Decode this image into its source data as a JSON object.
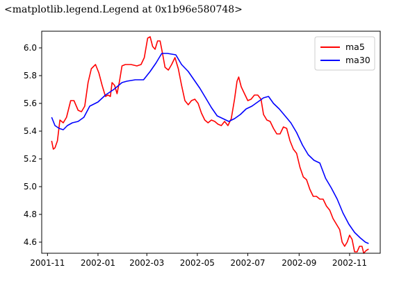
{
  "output_repr": "<matplotlib.legend.Legend at 0x1b96e580748>",
  "chart_data": {
    "type": "line",
    "xlim": [
      "2001-10-25",
      "2002-12-08"
    ],
    "ylim": [
      4.52,
      6.12
    ],
    "x_ticks": [
      "2001-11",
      "2002-01",
      "2002-03",
      "2002-05",
      "2002-07",
      "2002-09",
      "2002-11"
    ],
    "x_tick_dates": [
      "2001-11-01",
      "2002-01-01",
      "2002-03-01",
      "2002-05-01",
      "2002-07-01",
      "2002-09-01",
      "2002-11-01"
    ],
    "y_ticks": [
      "4.6",
      "4.8",
      "5.0",
      "5.2",
      "5.4",
      "5.6",
      "5.8",
      "6.0"
    ],
    "y_tick_values": [
      4.6,
      4.8,
      5.0,
      5.2,
      5.4,
      5.6,
      5.8,
      6.0
    ],
    "legend_position": "top-right",
    "series": [
      {
        "name": "ma5",
        "color": "#ff0000",
        "points": [
          [
            "2001-11-06",
            5.33
          ],
          [
            "2001-11-08",
            5.27
          ],
          [
            "2001-11-10",
            5.28
          ],
          [
            "2001-11-13",
            5.33
          ],
          [
            "2001-11-16",
            5.48
          ],
          [
            "2001-11-20",
            5.46
          ],
          [
            "2001-11-24",
            5.5
          ],
          [
            "2001-11-29",
            5.62
          ],
          [
            "2001-12-03",
            5.62
          ],
          [
            "2001-12-08",
            5.55
          ],
          [
            "2001-12-12",
            5.54
          ],
          [
            "2001-12-16",
            5.58
          ],
          [
            "2001-12-20",
            5.75
          ],
          [
            "2001-12-24",
            5.85
          ],
          [
            "2001-12-29",
            5.88
          ],
          [
            "2002-01-02",
            5.82
          ],
          [
            "2002-01-06",
            5.73
          ],
          [
            "2002-01-10",
            5.65
          ],
          [
            "2002-01-13",
            5.66
          ],
          [
            "2002-01-16",
            5.65
          ],
          [
            "2002-01-18",
            5.75
          ],
          [
            "2002-01-21",
            5.73
          ],
          [
            "2002-01-24",
            5.67
          ],
          [
            "2002-01-27",
            5.76
          ],
          [
            "2002-01-30",
            5.87
          ],
          [
            "2002-02-03",
            5.88
          ],
          [
            "2002-02-10",
            5.88
          ],
          [
            "2002-02-17",
            5.87
          ],
          [
            "2002-02-22",
            5.88
          ],
          [
            "2002-02-26",
            5.93
          ],
          [
            "2002-03-02",
            6.07
          ],
          [
            "2002-03-05",
            6.08
          ],
          [
            "2002-03-08",
            6.01
          ],
          [
            "2002-03-11",
            5.99
          ],
          [
            "2002-03-14",
            6.05
          ],
          [
            "2002-03-17",
            6.05
          ],
          [
            "2002-03-20",
            5.96
          ],
          [
            "2002-03-23",
            5.86
          ],
          [
            "2002-03-27",
            5.84
          ],
          [
            "2002-03-31",
            5.88
          ],
          [
            "2002-04-04",
            5.93
          ],
          [
            "2002-04-08",
            5.85
          ],
          [
            "2002-04-12",
            5.73
          ],
          [
            "2002-04-16",
            5.62
          ],
          [
            "2002-04-20",
            5.59
          ],
          [
            "2002-04-24",
            5.62
          ],
          [
            "2002-04-28",
            5.63
          ],
          [
            "2002-05-02",
            5.6
          ],
          [
            "2002-05-06",
            5.53
          ],
          [
            "2002-05-10",
            5.48
          ],
          [
            "2002-05-14",
            5.46
          ],
          [
            "2002-05-18",
            5.48
          ],
          [
            "2002-05-22",
            5.47
          ],
          [
            "2002-05-26",
            5.45
          ],
          [
            "2002-05-30",
            5.44
          ],
          [
            "2002-06-03",
            5.47
          ],
          [
            "2002-06-07",
            5.44
          ],
          [
            "2002-06-11",
            5.49
          ],
          [
            "2002-06-15",
            5.63
          ],
          [
            "2002-06-18",
            5.76
          ],
          [
            "2002-06-20",
            5.79
          ],
          [
            "2002-06-23",
            5.72
          ],
          [
            "2002-06-27",
            5.67
          ],
          [
            "2002-07-01",
            5.62
          ],
          [
            "2002-07-05",
            5.63
          ],
          [
            "2002-07-09",
            5.66
          ],
          [
            "2002-07-13",
            5.66
          ],
          [
            "2002-07-17",
            5.63
          ],
          [
            "2002-07-20",
            5.52
          ],
          [
            "2002-07-24",
            5.48
          ],
          [
            "2002-07-28",
            5.47
          ],
          [
            "2002-08-01",
            5.42
          ],
          [
            "2002-08-05",
            5.38
          ],
          [
            "2002-08-09",
            5.38
          ],
          [
            "2002-08-13",
            5.43
          ],
          [
            "2002-08-17",
            5.42
          ],
          [
            "2002-08-21",
            5.33
          ],
          [
            "2002-08-25",
            5.27
          ],
          [
            "2002-08-29",
            5.24
          ],
          [
            "2002-09-02",
            5.14
          ],
          [
            "2002-09-06",
            5.07
          ],
          [
            "2002-09-10",
            5.05
          ],
          [
            "2002-09-14",
            4.98
          ],
          [
            "2002-09-18",
            4.93
          ],
          [
            "2002-09-22",
            4.93
          ],
          [
            "2002-09-26",
            4.91
          ],
          [
            "2002-09-30",
            4.91
          ],
          [
            "2002-10-04",
            4.86
          ],
          [
            "2002-10-08",
            4.83
          ],
          [
            "2002-10-12",
            4.77
          ],
          [
            "2002-10-16",
            4.73
          ],
          [
            "2002-10-20",
            4.69
          ],
          [
            "2002-10-23",
            4.6
          ],
          [
            "2002-10-26",
            4.57
          ],
          [
            "2002-10-29",
            4.6
          ],
          [
            "2002-11-01",
            4.65
          ],
          [
            "2002-11-04",
            4.62
          ],
          [
            "2002-11-07",
            4.53
          ],
          [
            "2002-11-10",
            4.53
          ],
          [
            "2002-11-13",
            4.57
          ],
          [
            "2002-11-16",
            4.57
          ],
          [
            "2002-11-18",
            4.52
          ],
          [
            "2002-11-21",
            4.54
          ],
          [
            "2002-11-24",
            4.55
          ]
        ]
      },
      {
        "name": "ma30",
        "color": "#0000ff",
        "points": [
          [
            "2001-11-06",
            5.5
          ],
          [
            "2001-11-10",
            5.44
          ],
          [
            "2001-11-15",
            5.42
          ],
          [
            "2001-11-20",
            5.41
          ],
          [
            "2001-11-25",
            5.44
          ],
          [
            "2001-12-01",
            5.46
          ],
          [
            "2001-12-08",
            5.47
          ],
          [
            "2001-12-15",
            5.5
          ],
          [
            "2001-12-22",
            5.58
          ],
          [
            "2002-01-01",
            5.61
          ],
          [
            "2002-01-10",
            5.66
          ],
          [
            "2002-01-20",
            5.7
          ],
          [
            "2002-01-30",
            5.75
          ],
          [
            "2002-02-05",
            5.76
          ],
          [
            "2002-02-15",
            5.77
          ],
          [
            "2002-02-25",
            5.77
          ],
          [
            "2002-03-05",
            5.83
          ],
          [
            "2002-03-12",
            5.89
          ],
          [
            "2002-03-19",
            5.96
          ],
          [
            "2002-03-26",
            5.96
          ],
          [
            "2002-04-05",
            5.95
          ],
          [
            "2002-04-12",
            5.88
          ],
          [
            "2002-04-20",
            5.83
          ],
          [
            "2002-04-27",
            5.77
          ],
          [
            "2002-05-04",
            5.71
          ],
          [
            "2002-05-11",
            5.64
          ],
          [
            "2002-05-18",
            5.57
          ],
          [
            "2002-05-25",
            5.51
          ],
          [
            "2002-06-01",
            5.49
          ],
          [
            "2002-06-08",
            5.47
          ],
          [
            "2002-06-15",
            5.49
          ],
          [
            "2002-06-22",
            5.52
          ],
          [
            "2002-06-29",
            5.56
          ],
          [
            "2002-07-06",
            5.58
          ],
          [
            "2002-07-13",
            5.61
          ],
          [
            "2002-07-20",
            5.64
          ],
          [
            "2002-07-26",
            5.65
          ],
          [
            "2002-08-01",
            5.6
          ],
          [
            "2002-08-08",
            5.56
          ],
          [
            "2002-08-15",
            5.51
          ],
          [
            "2002-08-22",
            5.46
          ],
          [
            "2002-08-29",
            5.39
          ],
          [
            "2002-09-05",
            5.3
          ],
          [
            "2002-09-12",
            5.23
          ],
          [
            "2002-09-19",
            5.19
          ],
          [
            "2002-09-26",
            5.17
          ],
          [
            "2002-10-03",
            5.06
          ],
          [
            "2002-10-10",
            4.99
          ],
          [
            "2002-10-17",
            4.91
          ],
          [
            "2002-10-24",
            4.81
          ],
          [
            "2002-10-31",
            4.73
          ],
          [
            "2002-11-07",
            4.67
          ],
          [
            "2002-11-14",
            4.63
          ],
          [
            "2002-11-20",
            4.6
          ],
          [
            "2002-11-24",
            4.59
          ]
        ]
      }
    ]
  }
}
